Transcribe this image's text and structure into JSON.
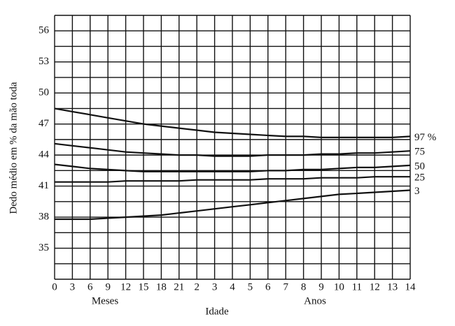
{
  "chart_data": {
    "type": "line",
    "xlabel": "Idade",
    "ylabel": "Dedo médio em % da mão toda",
    "group_labels": [
      "Meses",
      "Anos"
    ],
    "categories": [
      "0",
      "3",
      "6",
      "9",
      "12",
      "15",
      "18",
      "21",
      "2",
      "3",
      "4",
      "5",
      "6",
      "7",
      "8",
      "9",
      "10",
      "11",
      "12",
      "13",
      "14"
    ],
    "series": [
      {
        "name": "97 %",
        "color": "#111111",
        "values": [
          48.5,
          48.2,
          47.9,
          47.6,
          47.3,
          47.0,
          46.8,
          46.6,
          46.4,
          46.2,
          46.1,
          46.0,
          45.9,
          45.8,
          45.8,
          45.7,
          45.7,
          45.7,
          45.7,
          45.7,
          45.8
        ]
      },
      {
        "name": "75",
        "color": "#111111",
        "values": [
          45.1,
          44.9,
          44.7,
          44.5,
          44.3,
          44.2,
          44.1,
          44.0,
          44.0,
          43.9,
          43.9,
          43.9,
          44.0,
          44.0,
          44.0,
          44.1,
          44.1,
          44.2,
          44.2,
          44.3,
          44.4
        ]
      },
      {
        "name": "50",
        "color": "#111111",
        "values": [
          43.1,
          42.9,
          42.7,
          42.6,
          42.5,
          42.4,
          42.4,
          42.4,
          42.4,
          42.4,
          42.4,
          42.4,
          42.5,
          42.5,
          42.6,
          42.6,
          42.7,
          42.8,
          42.8,
          42.9,
          43.0
        ]
      },
      {
        "name": "25",
        "color": "#111111",
        "values": [
          41.4,
          41.4,
          41.4,
          41.4,
          41.5,
          41.5,
          41.5,
          41.5,
          41.6,
          41.6,
          41.6,
          41.6,
          41.7,
          41.7,
          41.7,
          41.8,
          41.8,
          41.8,
          41.9,
          41.9,
          41.9
        ]
      },
      {
        "name": "3",
        "color": "#111111",
        "values": [
          37.8,
          37.8,
          37.8,
          37.9,
          38.0,
          38.1,
          38.2,
          38.4,
          38.6,
          38.8,
          39.0,
          39.2,
          39.4,
          39.6,
          39.8,
          40.0,
          40.2,
          40.3,
          40.4,
          40.5,
          40.6
        ]
      }
    ],
    "ylim": [
      32,
      57.5
    ],
    "yticks": [
      35,
      38,
      41,
      44,
      47,
      50,
      53,
      56
    ],
    "ygrid": [
      32,
      33.5,
      35,
      36.5,
      38,
      39.5,
      41,
      42.5,
      44,
      45.5,
      47,
      48.5,
      50,
      51.5,
      53,
      54.5,
      56,
      57.5
    ],
    "grid": true
  }
}
